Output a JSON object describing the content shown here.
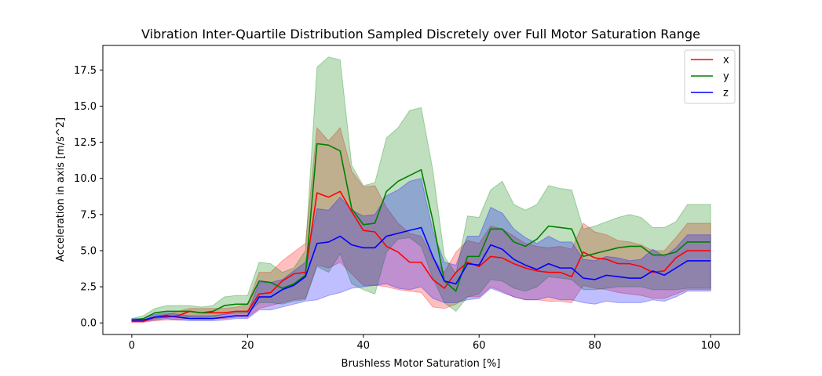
{
  "chart_data": {
    "type": "area",
    "title": "Vibration Inter-Quartile Distribution Sampled Discretely over Full Motor Saturation Range",
    "xlabel": "Brushless Motor Saturation [%]",
    "ylabel": "Acceleration in axis [m/s^2]",
    "xlim": [
      -5,
      105
    ],
    "ylim": [
      -0.8,
      19.2
    ],
    "xticks": [
      0,
      20,
      40,
      60,
      80,
      100
    ],
    "yticks": [
      0.0,
      2.5,
      5.0,
      7.5,
      10.0,
      12.5,
      15.0,
      17.5
    ],
    "grid": false,
    "legend_position": "top-right",
    "x": [
      0,
      2,
      4,
      6,
      8,
      10,
      12,
      14,
      16,
      18,
      20,
      22,
      24,
      26,
      28,
      30,
      32,
      34,
      36,
      38,
      40,
      42,
      44,
      46,
      48,
      50,
      52,
      54,
      56,
      58,
      60,
      62,
      64,
      66,
      68,
      70,
      72,
      74,
      76,
      78,
      80,
      82,
      84,
      86,
      88,
      90,
      92,
      94,
      96,
      98,
      100
    ],
    "series": [
      {
        "name": "x",
        "color": "#ff0000",
        "median": [
          0.1,
          0.1,
          0.4,
          0.4,
          0.5,
          0.8,
          0.7,
          0.7,
          0.7,
          0.8,
          0.8,
          2.0,
          2.1,
          2.9,
          3.4,
          3.5,
          9.0,
          8.7,
          9.1,
          7.7,
          6.4,
          6.3,
          5.3,
          4.9,
          4.2,
          4.2,
          3.0,
          2.4,
          3.5,
          4.2,
          3.9,
          4.6,
          4.5,
          4.1,
          3.8,
          3.6,
          3.5,
          3.5,
          3.2,
          4.9,
          4.5,
          4.4,
          4.1,
          4.1,
          3.9,
          3.5,
          3.6,
          4.5,
          5.0,
          5.0,
          5.0
        ],
        "q1": [
          0.05,
          0.05,
          0.15,
          0.2,
          0.2,
          0.3,
          0.3,
          0.3,
          0.3,
          0.4,
          0.4,
          1.0,
          1.2,
          1.4,
          1.6,
          1.7,
          4.0,
          3.8,
          4.2,
          3.4,
          2.6,
          2.6,
          2.5,
          2.3,
          2.2,
          2.1,
          1.1,
          1.0,
          1.3,
          1.8,
          1.8,
          2.5,
          2.2,
          1.8,
          1.6,
          1.6,
          1.5,
          1.5,
          1.4,
          2.6,
          2.4,
          2.3,
          2.1,
          2.0,
          1.9,
          1.7,
          1.7,
          2.0,
          2.3,
          2.3,
          2.3
        ],
        "q3": [
          0.15,
          0.2,
          0.5,
          0.6,
          0.8,
          1.0,
          1.0,
          1.0,
          1.0,
          1.1,
          1.3,
          3.5,
          3.5,
          4.3,
          4.9,
          5.5,
          13.5,
          12.6,
          13.5,
          10.5,
          9.4,
          9.5,
          8.0,
          6.9,
          6.2,
          6.0,
          4.5,
          3.5,
          4.9,
          5.7,
          5.5,
          6.7,
          6.5,
          6.0,
          5.5,
          5.3,
          5.2,
          5.3,
          5.1,
          6.9,
          6.3,
          6.1,
          5.7,
          5.6,
          5.4,
          5.0,
          5.0,
          5.9,
          6.9,
          6.9,
          6.9
        ]
      },
      {
        "name": "y",
        "color": "#008000",
        "median": [
          0.2,
          0.3,
          0.7,
          0.8,
          0.8,
          0.8,
          0.7,
          0.8,
          1.2,
          1.3,
          1.3,
          2.9,
          2.8,
          2.4,
          2.7,
          3.3,
          12.4,
          12.3,
          11.9,
          7.9,
          6.8,
          6.9,
          9.1,
          9.8,
          10.2,
          10.6,
          7.1,
          2.9,
          2.2,
          4.6,
          4.6,
          6.5,
          6.5,
          5.6,
          5.3,
          5.8,
          6.7,
          6.6,
          6.5,
          4.6,
          4.8,
          5.0,
          5.2,
          5.3,
          5.3,
          4.7,
          4.7,
          4.9,
          5.6,
          5.6,
          5.6
        ],
        "q1": [
          0.1,
          0.15,
          0.3,
          0.4,
          0.4,
          0.4,
          0.35,
          0.4,
          0.6,
          0.7,
          0.7,
          1.4,
          1.4,
          1.3,
          1.5,
          1.6,
          3.9,
          3.5,
          4.8,
          2.7,
          2.3,
          2.0,
          4.9,
          5.8,
          5.9,
          5.3,
          3.1,
          1.4,
          0.8,
          1.8,
          2.0,
          3.0,
          2.9,
          2.4,
          2.2,
          2.5,
          3.2,
          3.1,
          3.0,
          2.3,
          2.3,
          2.4,
          2.5,
          2.5,
          2.5,
          2.3,
          2.3,
          2.3,
          2.4,
          2.4,
          2.4
        ],
        "q3": [
          0.3,
          0.5,
          1.0,
          1.2,
          1.2,
          1.2,
          1.1,
          1.2,
          1.8,
          1.9,
          1.9,
          4.2,
          4.1,
          3.5,
          3.8,
          5.0,
          17.7,
          18.4,
          18.2,
          10.9,
          9.5,
          9.7,
          12.8,
          13.5,
          14.7,
          14.9,
          10.6,
          4.6,
          3.4,
          7.4,
          7.3,
          9.2,
          9.8,
          8.2,
          7.8,
          8.2,
          9.5,
          9.3,
          9.2,
          6.5,
          6.7,
          7.0,
          7.3,
          7.5,
          7.3,
          6.6,
          6.6,
          7.0,
          8.2,
          8.2,
          8.2
        ]
      },
      {
        "name": "z",
        "color": "#0000ff",
        "median": [
          0.2,
          0.2,
          0.4,
          0.5,
          0.4,
          0.3,
          0.3,
          0.3,
          0.4,
          0.5,
          0.5,
          1.8,
          1.8,
          2.3,
          2.6,
          3.2,
          5.5,
          5.6,
          6.0,
          5.4,
          5.2,
          5.2,
          6.0,
          6.2,
          6.4,
          6.6,
          4.6,
          2.9,
          2.7,
          4.1,
          4.0,
          5.4,
          5.1,
          4.4,
          4.0,
          3.7,
          4.1,
          3.8,
          3.8,
          3.1,
          3.0,
          3.3,
          3.2,
          3.1,
          3.1,
          3.6,
          3.3,
          3.8,
          4.3,
          4.3,
          4.3
        ],
        "q1": [
          0.1,
          0.1,
          0.2,
          0.3,
          0.2,
          0.15,
          0.15,
          0.15,
          0.2,
          0.3,
          0.3,
          0.9,
          0.9,
          1.1,
          1.3,
          1.5,
          1.6,
          1.9,
          2.1,
          2.4,
          2.5,
          2.6,
          2.7,
          2.4,
          2.3,
          2.5,
          1.7,
          1.4,
          1.4,
          1.6,
          1.7,
          2.4,
          2.1,
          1.8,
          1.6,
          1.6,
          1.8,
          1.6,
          1.6,
          1.4,
          1.3,
          1.5,
          1.4,
          1.4,
          1.4,
          1.6,
          1.5,
          1.8,
          2.2,
          2.2,
          2.2
        ],
        "q3": [
          0.3,
          0.3,
          0.6,
          0.7,
          0.6,
          0.5,
          0.5,
          0.5,
          0.6,
          0.7,
          0.7,
          2.8,
          2.8,
          3.0,
          3.6,
          4.2,
          7.9,
          7.8,
          8.7,
          7.8,
          7.4,
          7.5,
          8.8,
          9.2,
          9.8,
          10.0,
          6.4,
          4.2,
          4.0,
          6.0,
          6.0,
          8.0,
          7.6,
          6.5,
          5.9,
          5.5,
          6.0,
          5.6,
          5.6,
          4.4,
          4.3,
          4.6,
          4.5,
          4.3,
          4.4,
          5.1,
          4.6,
          5.2,
          6.1,
          6.1,
          6.1
        ]
      }
    ]
  }
}
